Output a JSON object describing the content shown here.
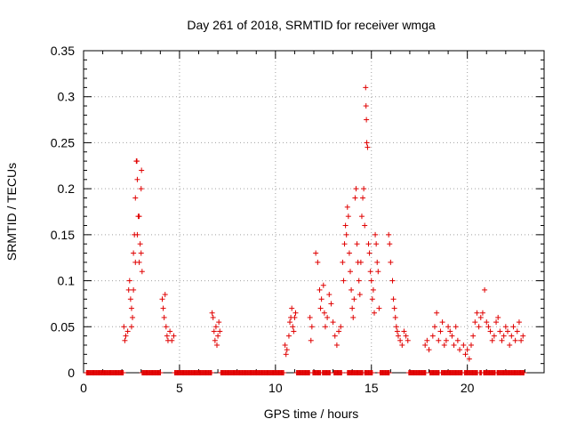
{
  "chart_data": {
    "type": "scatter",
    "title": "Day 261 of 2018, SRMTID for receiver wmga",
    "xlabel": "GPS time / hours",
    "ylabel": "SRMTID / TECUs",
    "xlim": [
      0,
      24
    ],
    "ylim": [
      0,
      0.35
    ],
    "xticks": [
      0,
      5,
      10,
      15,
      20
    ],
    "xtick_labels": [
      "0",
      "5",
      "10",
      "15",
      "20"
    ],
    "yticks": [
      0,
      0.05,
      0.1,
      0.15,
      0.2,
      0.25,
      0.3,
      0.35
    ],
    "ytick_labels": [
      "0",
      "0.05",
      "0.1",
      "0.15",
      "0.2",
      "0.25",
      "0.3",
      "0.35"
    ],
    "grid": true,
    "marker": "+",
    "marker_color": "#e00000",
    "series": [
      {
        "name": "SRMTID",
        "points": [
          [
            2.1,
            0.05
          ],
          [
            2.15,
            0.035
          ],
          [
            2.2,
            0.04
          ],
          [
            2.3,
            0.045
          ],
          [
            2.35,
            0.09
          ],
          [
            2.4,
            0.1
          ],
          [
            2.45,
            0.08
          ],
          [
            2.5,
            0.07
          ],
          [
            2.55,
            0.06
          ],
          [
            2.6,
            0.13
          ],
          [
            2.65,
            0.15
          ],
          [
            2.7,
            0.19
          ],
          [
            2.75,
            0.23
          ],
          [
            2.78,
            0.23
          ],
          [
            2.8,
            0.21
          ],
          [
            2.85,
            0.17
          ],
          [
            2.9,
            0.12
          ],
          [
            2.95,
            0.14
          ],
          [
            3.0,
            0.2
          ],
          [
            3.02,
            0.22
          ],
          [
            3.05,
            0.11
          ],
          [
            2.5,
            0.05
          ],
          [
            2.6,
            0.09
          ],
          [
            2.7,
            0.12
          ],
          [
            2.8,
            0.15
          ],
          [
            2.9,
            0.17
          ],
          [
            3.0,
            0.13
          ],
          [
            4.1,
            0.08
          ],
          [
            4.15,
            0.07
          ],
          [
            4.2,
            0.06
          ],
          [
            4.25,
            0.085
          ],
          [
            4.3,
            0.05
          ],
          [
            4.35,
            0.04
          ],
          [
            4.4,
            0.035
          ],
          [
            4.5,
            0.045
          ],
          [
            4.6,
            0.035
          ],
          [
            4.7,
            0.04
          ],
          [
            6.7,
            0.065
          ],
          [
            6.75,
            0.06
          ],
          [
            6.8,
            0.045
          ],
          [
            6.85,
            0.035
          ],
          [
            6.9,
            0.05
          ],
          [
            6.95,
            0.03
          ],
          [
            7.0,
            0.04
          ],
          [
            7.05,
            0.055
          ],
          [
            7.1,
            0.045
          ],
          [
            10.5,
            0.03
          ],
          [
            10.55,
            0.02
          ],
          [
            10.6,
            0.025
          ],
          [
            10.7,
            0.04
          ],
          [
            10.75,
            0.055
          ],
          [
            10.8,
            0.06
          ],
          [
            10.85,
            0.07
          ],
          [
            10.9,
            0.05
          ],
          [
            10.95,
            0.045
          ],
          [
            11.0,
            0.06
          ],
          [
            11.05,
            0.065
          ],
          [
            11.8,
            0.06
          ],
          [
            11.85,
            0.035
          ],
          [
            11.9,
            0.05
          ],
          [
            12.1,
            0.13
          ],
          [
            12.2,
            0.12
          ],
          [
            12.3,
            0.09
          ],
          [
            12.35,
            0.07
          ],
          [
            12.4,
            0.08
          ],
          [
            12.5,
            0.095
          ],
          [
            12.55,
            0.065
          ],
          [
            12.6,
            0.05
          ],
          [
            12.7,
            0.06
          ],
          [
            12.8,
            0.085
          ],
          [
            12.9,
            0.075
          ],
          [
            13.0,
            0.055
          ],
          [
            13.1,
            0.04
          ],
          [
            13.2,
            0.03
          ],
          [
            13.3,
            0.045
          ],
          [
            13.4,
            0.05
          ],
          [
            13.5,
            0.12
          ],
          [
            13.55,
            0.1
          ],
          [
            13.6,
            0.14
          ],
          [
            13.65,
            0.16
          ],
          [
            13.7,
            0.15
          ],
          [
            13.75,
            0.18
          ],
          [
            13.8,
            0.17
          ],
          [
            13.85,
            0.13
          ],
          [
            13.9,
            0.11
          ],
          [
            13.95,
            0.09
          ],
          [
            14.0,
            0.07
          ],
          [
            14.05,
            0.06
          ],
          [
            14.1,
            0.08
          ],
          [
            14.15,
            0.19
          ],
          [
            14.2,
            0.2
          ],
          [
            14.25,
            0.14
          ],
          [
            14.3,
            0.12
          ],
          [
            14.35,
            0.1
          ],
          [
            14.4,
            0.085
          ],
          [
            14.45,
            0.12
          ],
          [
            14.5,
            0.17
          ],
          [
            14.55,
            0.19
          ],
          [
            14.6,
            0.2
          ],
          [
            14.65,
            0.16
          ],
          [
            14.7,
            0.31
          ],
          [
            14.72,
            0.29
          ],
          [
            14.74,
            0.275
          ],
          [
            14.76,
            0.25
          ],
          [
            14.8,
            0.245
          ],
          [
            14.85,
            0.14
          ],
          [
            14.9,
            0.13
          ],
          [
            14.95,
            0.11
          ],
          [
            15.0,
            0.1
          ],
          [
            15.05,
            0.08
          ],
          [
            15.1,
            0.09
          ],
          [
            15.15,
            0.065
          ],
          [
            15.2,
            0.15
          ],
          [
            15.25,
            0.14
          ],
          [
            15.3,
            0.12
          ],
          [
            15.35,
            0.11
          ],
          [
            15.4,
            0.07
          ],
          [
            15.9,
            0.15
          ],
          [
            15.95,
            0.14
          ],
          [
            16.0,
            0.12
          ],
          [
            16.1,
            0.1
          ],
          [
            16.15,
            0.08
          ],
          [
            16.2,
            0.07
          ],
          [
            16.25,
            0.06
          ],
          [
            16.3,
            0.05
          ],
          [
            16.35,
            0.045
          ],
          [
            16.4,
            0.04
          ],
          [
            16.5,
            0.035
          ],
          [
            16.6,
            0.03
          ],
          [
            16.7,
            0.045
          ],
          [
            16.8,
            0.04
          ],
          [
            16.9,
            0.035
          ],
          [
            17.8,
            0.03
          ],
          [
            17.9,
            0.035
          ],
          [
            18.0,
            0.025
          ],
          [
            18.2,
            0.04
          ],
          [
            18.3,
            0.05
          ],
          [
            18.4,
            0.065
          ],
          [
            18.5,
            0.035
          ],
          [
            18.6,
            0.045
          ],
          [
            18.7,
            0.055
          ],
          [
            18.8,
            0.03
          ],
          [
            18.9,
            0.035
          ],
          [
            19.0,
            0.05
          ],
          [
            19.1,
            0.045
          ],
          [
            19.2,
            0.04
          ],
          [
            19.3,
            0.03
          ],
          [
            19.4,
            0.05
          ],
          [
            19.5,
            0.035
          ],
          [
            19.6,
            0.025
          ],
          [
            19.8,
            0.03
          ],
          [
            19.9,
            0.02
          ],
          [
            20.0,
            0.025
          ],
          [
            20.1,
            0.015
          ],
          [
            20.2,
            0.03
          ],
          [
            20.3,
            0.04
          ],
          [
            20.4,
            0.055
          ],
          [
            20.5,
            0.065
          ],
          [
            20.6,
            0.05
          ],
          [
            20.7,
            0.06
          ],
          [
            20.8,
            0.065
          ],
          [
            20.9,
            0.09
          ],
          [
            21.0,
            0.055
          ],
          [
            21.1,
            0.05
          ],
          [
            21.2,
            0.045
          ],
          [
            21.3,
            0.035
          ],
          [
            21.4,
            0.04
          ],
          [
            21.5,
            0.055
          ],
          [
            21.6,
            0.06
          ],
          [
            21.7,
            0.045
          ],
          [
            21.8,
            0.035
          ],
          [
            21.9,
            0.04
          ],
          [
            22.0,
            0.05
          ],
          [
            22.1,
            0.045
          ],
          [
            22.2,
            0.03
          ],
          [
            22.3,
            0.04
          ],
          [
            22.4,
            0.05
          ],
          [
            22.5,
            0.035
          ],
          [
            22.6,
            0.045
          ],
          [
            22.7,
            0.055
          ],
          [
            22.8,
            0.035
          ],
          [
            22.9,
            0.04
          ]
        ]
      },
      {
        "name": "zero-baseline",
        "x_ranges": [
          [
            0.15,
            2.1
          ],
          [
            3.05,
            4.05
          ],
          [
            4.75,
            6.7
          ],
          [
            7.15,
            10.45
          ],
          [
            11.1,
            11.8
          ],
          [
            11.95,
            12.35
          ],
          [
            12.45,
            12.85
          ],
          [
            13.05,
            13.45
          ],
          [
            13.75,
            14.55
          ],
          [
            14.65,
            15.05
          ],
          [
            15.45,
            15.95
          ],
          [
            16.95,
            17.85
          ],
          [
            18.05,
            18.55
          ],
          [
            18.65,
            19.75
          ],
          [
            19.85,
            20.55
          ],
          [
            20.65,
            20.75
          ],
          [
            20.85,
            21.45
          ],
          [
            21.55,
            22.95
          ]
        ],
        "value": 0
      }
    ]
  }
}
